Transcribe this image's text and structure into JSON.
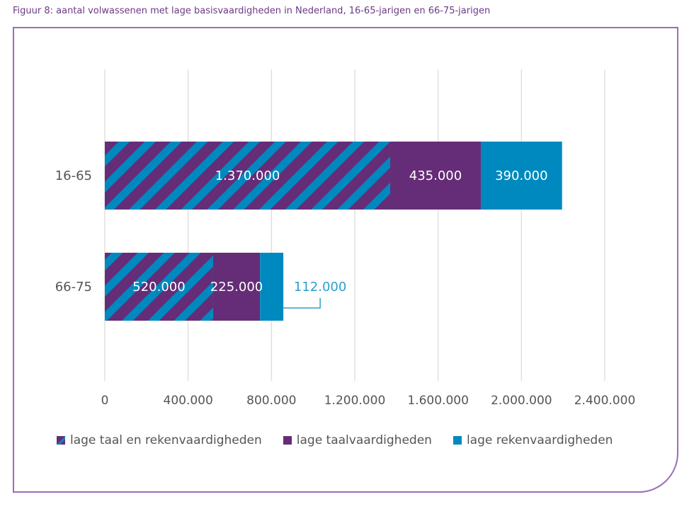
{
  "caption": "Figuur 8: aantal volwassenen met lage basisvaardigheden in Nederland, 16-65-jarigen en 66-75-jarigen",
  "colors": {
    "purple": "#652d77",
    "blue": "#0089bf",
    "label_blue": "#2a9fcf",
    "frame": "#9b6fb4",
    "grid": "#e0e0e0"
  },
  "chart_data": {
    "type": "bar",
    "orientation": "horizontal",
    "stacked": true,
    "title": "Figuur 8: aantal volwassenen met lage basisvaardigheden in Nederland, 16-65-jarigen en 66-75-jarigen",
    "categories": [
      "16-65",
      "66-75"
    ],
    "series": [
      {
        "name": "lage taal en rekenvaardigheden",
        "values": [
          1370000,
          520000
        ],
        "labels": [
          "1.370.000",
          "520.000"
        ],
        "pattern": "striped"
      },
      {
        "name": "lage taalvaardigheden",
        "values": [
          435000,
          225000
        ],
        "labels": [
          "435.000",
          "225.000"
        ]
      },
      {
        "name": "lage rekenvaardigheden",
        "values": [
          390000,
          112000
        ],
        "labels": [
          "390.000",
          "112.000"
        ]
      }
    ],
    "xlim": [
      0,
      2400000
    ],
    "xticks": [
      0,
      400000,
      800000,
      1200000,
      1600000,
      2000000,
      2400000
    ],
    "xtick_labels": [
      "0",
      "400.000",
      "800.000",
      "1.200.000",
      "1.600.000",
      "2.000.000",
      "2.400.000"
    ],
    "xlabel": "",
    "ylabel": "",
    "grid": "vertical",
    "legend_position": "bottom"
  }
}
